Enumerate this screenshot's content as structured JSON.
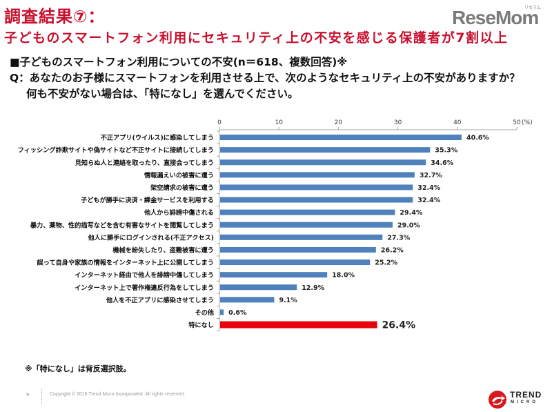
{
  "header": {
    "title_line1": "調査結果⑦：",
    "title_line2": "子どものスマートフォン利用にセキュリティ上の不安を感じる保護者が7割以上",
    "logo": "ReseMom",
    "logo_ruby": "リセマム"
  },
  "subheading": {
    "line1": "■子どものスマートフォン利用についての不安(n＝618、複数回答)※",
    "line2": "Q：あなたのお子様にスマートフォンを利用させる上で、次のようなセキュリティ上の不安がありますか？",
    "line3": "何も不安がない場合は、「特になし」を選んでください。"
  },
  "chart_data": {
    "type": "bar",
    "orientation": "horizontal",
    "title": "子どものスマートフォン利用についての不安(n＝618、複数回答)",
    "xlabel": "(%)",
    "ylabel": "",
    "xlim": [
      0,
      50
    ],
    "xticks": [
      0,
      10,
      20,
      30,
      40,
      50
    ],
    "xtick_labels": [
      "0",
      "10",
      "20",
      "30",
      "40",
      "50"
    ],
    "unit_label": "(%)",
    "grid": false,
    "categories": [
      "不正アプリ(ウイルス)に感染してしまう",
      "フィッシング詐欺サイトや偽サイトなど不正サイトに接続してしまう",
      "見知らぬ人と連絡を取ったり、直接会ってしまう",
      "情報漏えいの被害に遭う",
      "架空請求の被害に遭う",
      "子どもが勝手に決済・課金サービスを利用する",
      "他人から誹謗中傷される",
      "暴力、薬物、性的描写などを含む有害なサイトを閲覧してしまう",
      "他人に勝手にログインされる(不正アクセス)",
      "機械を紛失したり、盗難被害に遭う",
      "誤って自身や家族の情報をインターネット上に公開してしまう",
      "インターネット経由で他人を誹謗中傷してしまう",
      "インターネット上で著作権違反行為をしてしまう",
      "他人を不正アプリに感染させてしまう",
      "その他",
      "特になし"
    ],
    "values": [
      40.6,
      35.3,
      34.6,
      32.7,
      32.4,
      32.4,
      29.4,
      29.0,
      27.3,
      26.2,
      25.2,
      18.0,
      12.9,
      9.1,
      0.6,
      26.4
    ],
    "value_labels": [
      "40.6%",
      "35.3%",
      "34.6%",
      "32.7%",
      "32.4%",
      "32.4%",
      "29.4%",
      "29.0%",
      "27.3%",
      "26.2%",
      "25.2%",
      "18.0%",
      "12.9%",
      "9.1%",
      "0.6%",
      "26.4%"
    ],
    "highlight_index": 15,
    "colors": {
      "bar": "#4f81bd",
      "highlight": "#e8000b",
      "axis": "#a6a6a6"
    }
  },
  "footnote": "※「特になし」は背反選択肢。",
  "footer": {
    "page_number": "9",
    "copyright": "Copyright © 2016 Trend Micro Incorporated. All rights reserved.",
    "brand_line1": "TREND",
    "brand_line2": "MICRO"
  }
}
